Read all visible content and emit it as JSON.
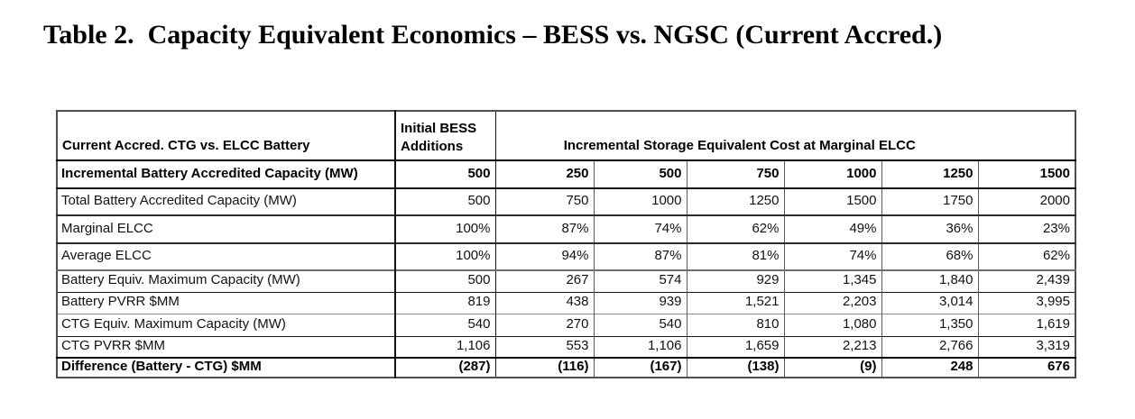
{
  "page_title": "Table 2.  Capacity Equivalent Economics – BESS vs. NGSC (Current Accred.)",
  "table": {
    "header": {
      "row_label_header": "Current Accred. CTG vs. ELCC Battery",
      "initial_bess_header": "Initial BESS Additions",
      "span_header": "Incremental Storage Equivalent Cost at Marginal ELCC"
    },
    "rows": [
      {
        "label": "Incremental Battery Accredited Capacity (MW)",
        "emphasis": true,
        "values": [
          "500",
          "250",
          "500",
          "750",
          "1000",
          "1250",
          "1500"
        ]
      },
      {
        "label": "Total Battery Accredited Capacity (MW)",
        "emphasis": false,
        "values": [
          "500",
          "750",
          "1000",
          "1250",
          "1500",
          "1750",
          "2000"
        ]
      },
      {
        "label": "Marginal ELCC",
        "emphasis": false,
        "values": [
          "100%",
          "87%",
          "74%",
          "62%",
          "49%",
          "36%",
          "23%"
        ]
      },
      {
        "label": "Average ELCC",
        "emphasis": false,
        "values": [
          "100%",
          "94%",
          "87%",
          "81%",
          "74%",
          "68%",
          "62%"
        ]
      },
      {
        "label": "Battery Equiv. Maximum Capacity (MW)",
        "emphasis": false,
        "values": [
          "500",
          "267",
          "574",
          "929",
          "1,345",
          "1,840",
          "2,439"
        ]
      },
      {
        "label": "Battery PVRR $MM",
        "emphasis": false,
        "values": [
          "819",
          "438",
          "939",
          "1,521",
          "2,203",
          "3,014",
          "3,995"
        ]
      },
      {
        "label": "CTG Equiv. Maximum Capacity (MW)",
        "emphasis": false,
        "values": [
          "540",
          "270",
          "540",
          "810",
          "1,080",
          "1,350",
          "1,619"
        ]
      },
      {
        "label": "CTG PVRR $MM",
        "emphasis": false,
        "values": [
          "1,106",
          "553",
          "1,106",
          "1,659",
          "2,213",
          "2,766",
          "3,319"
        ]
      },
      {
        "label": "Difference (Battery - CTG) $MM",
        "emphasis": true,
        "values": [
          "(287)",
          "(116)",
          "(167)",
          "(138)",
          "(9)",
          "248",
          "676"
        ]
      }
    ]
  }
}
